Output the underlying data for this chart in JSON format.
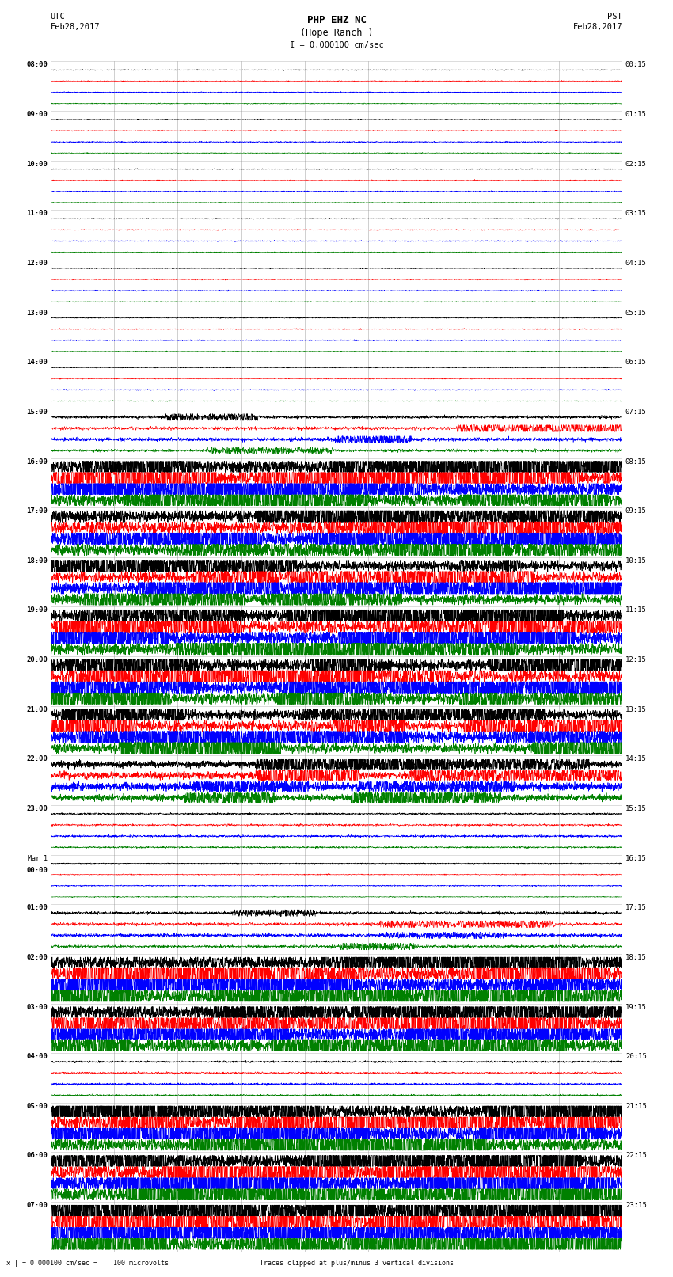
{
  "title_line1": "PHP EHZ NC",
  "title_line2": "(Hope Ranch )",
  "title_line3": "I = 0.000100 cm/sec",
  "utc_times": [
    "08:00",
    "09:00",
    "10:00",
    "11:00",
    "12:00",
    "13:00",
    "14:00",
    "15:00",
    "16:00",
    "17:00",
    "18:00",
    "19:00",
    "20:00",
    "21:00",
    "22:00",
    "23:00",
    "Mar 1\n00:00",
    "01:00",
    "02:00",
    "03:00",
    "04:00",
    "05:00",
    "06:00",
    "07:00"
  ],
  "pst_times": [
    "00:15",
    "01:15",
    "02:15",
    "03:15",
    "04:15",
    "05:15",
    "06:15",
    "07:15",
    "08:15",
    "09:15",
    "10:15",
    "11:15",
    "12:15",
    "13:15",
    "14:15",
    "15:15",
    "16:15",
    "17:15",
    "18:15",
    "19:15",
    "20:15",
    "21:15",
    "22:15",
    "23:15"
  ],
  "bottom_note": "x | = 0.000100 cm/sec =    100 microvolts                       Traces clipped at plus/minus 3 vertical divisions",
  "bg_color": "#ffffff",
  "trace_colors": [
    "#000000",
    "#ff0000",
    "#0000ff",
    "#008000"
  ],
  "n_rows": 24,
  "fig_width": 8.5,
  "fig_height": 16.13,
  "activity_levels": [
    0.15,
    0.3,
    0.15,
    0.1,
    0.2,
    0.15,
    0.15,
    0.8,
    3.0,
    2.5,
    2.0,
    2.5,
    2.5,
    2.0,
    1.5,
    0.5,
    0.3,
    0.8,
    3.0,
    3.0,
    0.5,
    3.0,
    3.5,
    4.0
  ],
  "seed": 12345
}
